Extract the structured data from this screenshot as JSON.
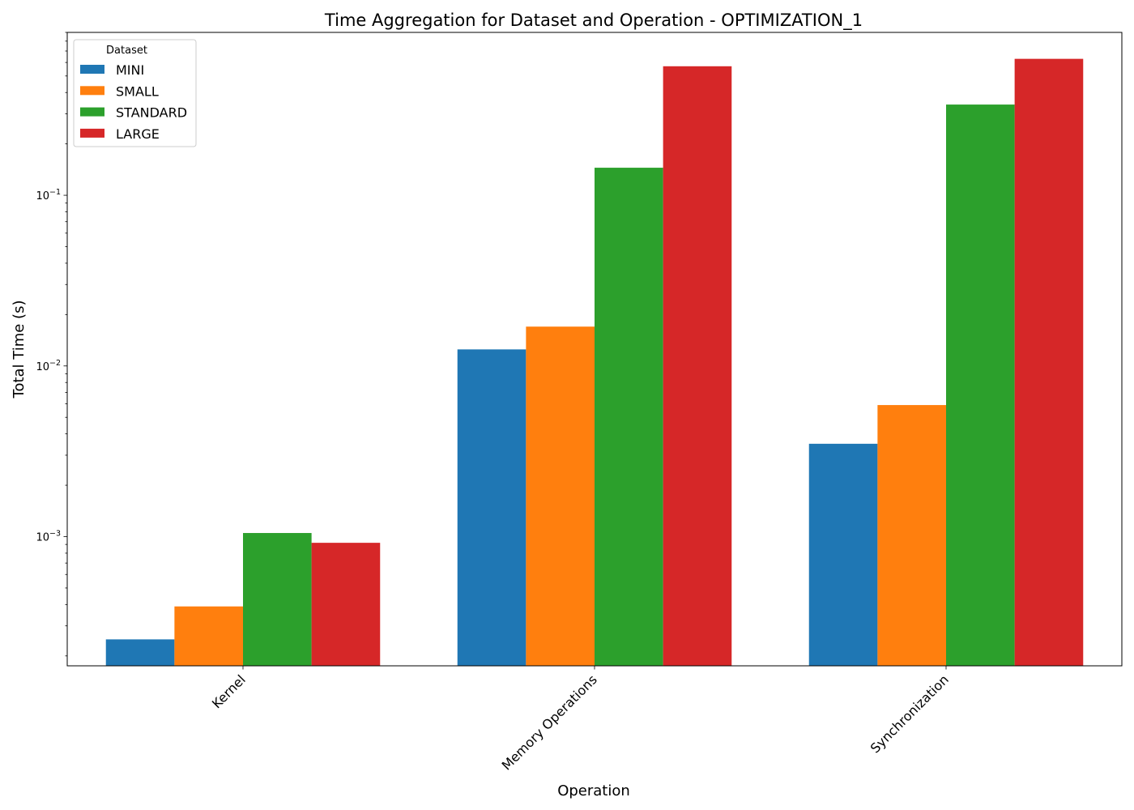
{
  "chart_data": {
    "type": "bar",
    "title": "Time Aggregation for Dataset and Operation - OPTIMIZATION_1",
    "xlabel": "Operation",
    "ylabel": "Total Time (s)",
    "yscale": "log",
    "ylim": [
      0.000175,
      0.9
    ],
    "y_ticks": [
      {
        "value": 0.001,
        "base": "10",
        "exp": "−3"
      },
      {
        "value": 0.01,
        "base": "10",
        "exp": "−2"
      },
      {
        "value": 0.1,
        "base": "10",
        "exp": "−1"
      }
    ],
    "categories": [
      "Kernel",
      "Memory Operations",
      "Synchronization"
    ],
    "legend": {
      "title": "Dataset",
      "position": "top-left"
    },
    "grid": false,
    "series": [
      {
        "name": "MINI",
        "color": "#1f77b4",
        "values": [
          0.00025,
          0.0125,
          0.0035
        ]
      },
      {
        "name": "SMALL",
        "color": "#ff7f0e",
        "values": [
          0.00039,
          0.017,
          0.0059
        ]
      },
      {
        "name": "STANDARD",
        "color": "#2ca02c",
        "values": [
          0.00105,
          0.145,
          0.34
        ]
      },
      {
        "name": "LARGE",
        "color": "#d62728",
        "values": [
          0.00092,
          0.57,
          0.63
        ]
      }
    ]
  }
}
